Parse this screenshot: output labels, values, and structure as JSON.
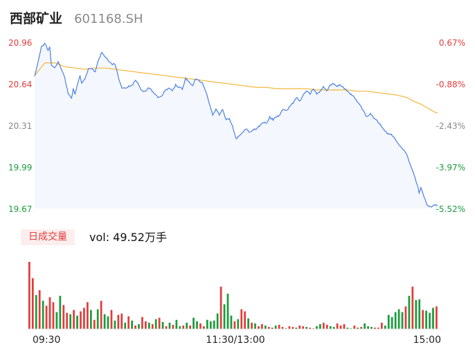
{
  "header": {
    "name": "西部矿业",
    "code": "601168.SH"
  },
  "volume": {
    "tab_label": "日成交量",
    "vol_text": "vol: 49.52万手"
  },
  "colors": {
    "price_line": "#4a7fe3",
    "avg_line": "#f5b63a",
    "up": "#e33b3b",
    "down": "#1a9b3c",
    "area_fill": "#f4f7fd",
    "neutral": "#888888"
  },
  "chart_data": [
    {
      "type": "line",
      "title": "",
      "x_ticks": [
        "09:30",
        "11:30/13:00",
        "15:00"
      ],
      "y_ticks_left": [
        "20.96",
        "20.64",
        "20.31",
        "19.99",
        "19.67"
      ],
      "y_ticks_right": [
        "0.67%",
        "-0.88%",
        "-2.43%",
        "-3.97%",
        "-5.52%"
      ],
      "ylim": [
        19.67,
        20.96
      ],
      "price_anchors": [
        [
          0,
          20.7
        ],
        [
          2,
          20.8
        ],
        [
          4,
          20.92
        ],
        [
          6,
          20.95
        ],
        [
          8,
          20.9
        ],
        [
          9,
          20.92
        ],
        [
          10,
          20.78
        ],
        [
          12,
          20.76
        ],
        [
          14,
          20.81
        ],
        [
          16,
          20.75
        ],
        [
          18,
          20.68
        ],
        [
          20,
          20.56
        ],
        [
          22,
          20.53
        ],
        [
          23,
          20.6
        ],
        [
          24,
          20.56
        ],
        [
          26,
          20.66
        ],
        [
          27,
          20.7
        ],
        [
          28,
          20.64
        ],
        [
          30,
          20.68
        ],
        [
          32,
          20.75
        ],
        [
          34,
          20.76
        ],
        [
          36,
          20.73
        ],
        [
          38,
          20.82
        ],
        [
          40,
          20.88
        ],
        [
          42,
          20.85
        ],
        [
          44,
          20.81
        ],
        [
          46,
          20.79
        ],
        [
          48,
          20.79
        ],
        [
          50,
          20.68
        ],
        [
          52,
          20.61
        ],
        [
          54,
          20.6
        ],
        [
          56,
          20.62
        ],
        [
          58,
          20.62
        ],
        [
          60,
          20.67
        ],
        [
          62,
          20.63
        ],
        [
          64,
          20.58
        ],
        [
          66,
          20.58
        ],
        [
          68,
          20.61
        ],
        [
          70,
          20.58
        ],
        [
          72,
          20.55
        ],
        [
          74,
          20.53
        ],
        [
          76,
          20.55
        ],
        [
          78,
          20.59
        ],
        [
          80,
          20.6
        ],
        [
          82,
          20.58
        ],
        [
          84,
          20.63
        ],
        [
          86,
          20.61
        ],
        [
          88,
          20.6
        ],
        [
          90,
          20.68
        ],
        [
          92,
          20.65
        ],
        [
          94,
          20.62
        ],
        [
          96,
          20.68
        ],
        [
          98,
          20.66
        ],
        [
          100,
          20.64
        ],
        [
          102,
          20.58
        ],
        [
          104,
          20.49
        ],
        [
          106,
          20.4
        ],
        [
          108,
          20.44
        ],
        [
          110,
          20.4
        ],
        [
          112,
          20.44
        ],
        [
          114,
          20.36
        ],
        [
          116,
          20.37
        ],
        [
          118,
          20.3
        ],
        [
          120,
          20.21
        ],
        [
          122,
          20.24
        ],
        [
          124,
          20.26
        ],
        [
          126,
          20.29
        ],
        [
          128,
          20.26
        ],
        [
          130,
          20.28
        ],
        [
          132,
          20.29
        ],
        [
          134,
          20.31
        ],
        [
          136,
          20.34
        ],
        [
          138,
          20.33
        ],
        [
          140,
          20.38
        ],
        [
          142,
          20.36
        ],
        [
          144,
          20.38
        ],
        [
          146,
          20.4
        ],
        [
          148,
          20.44
        ],
        [
          150,
          20.43
        ],
        [
          152,
          20.46
        ],
        [
          154,
          20.49
        ],
        [
          156,
          20.53
        ],
        [
          158,
          20.5
        ],
        [
          160,
          20.55
        ],
        [
          162,
          20.58
        ],
        [
          164,
          20.56
        ],
        [
          166,
          20.6
        ],
        [
          168,
          20.56
        ],
        [
          170,
          20.58
        ],
        [
          172,
          20.62
        ],
        [
          174,
          20.58
        ],
        [
          176,
          20.63
        ],
        [
          178,
          20.64
        ],
        [
          180,
          20.62
        ],
        [
          182,
          20.63
        ],
        [
          184,
          20.61
        ],
        [
          186,
          20.58
        ],
        [
          188,
          20.56
        ],
        [
          190,
          20.54
        ],
        [
          192,
          20.5
        ],
        [
          194,
          20.47
        ],
        [
          196,
          20.42
        ],
        [
          198,
          20.38
        ],
        [
          200,
          20.41
        ],
        [
          202,
          20.37
        ],
        [
          204,
          20.35
        ],
        [
          206,
          20.32
        ],
        [
          208,
          20.28
        ],
        [
          210,
          20.25
        ],
        [
          212,
          20.25
        ],
        [
          214,
          20.22
        ],
        [
          216,
          20.18
        ],
        [
          218,
          20.15
        ],
        [
          220,
          20.12
        ],
        [
          222,
          20.08
        ],
        [
          224,
          20.0
        ],
        [
          226,
          19.93
        ],
        [
          228,
          19.85
        ],
        [
          229,
          19.79
        ],
        [
          230,
          19.83
        ],
        [
          232,
          19.76
        ],
        [
          234,
          19.69
        ],
        [
          236,
          19.68
        ],
        [
          238,
          19.7
        ],
        [
          240,
          19.69
        ]
      ],
      "avg_anchors": [
        [
          0,
          20.7
        ],
        [
          6,
          20.8
        ],
        [
          12,
          20.8
        ],
        [
          18,
          20.77
        ],
        [
          24,
          20.76
        ],
        [
          30,
          20.75
        ],
        [
          36,
          20.76
        ],
        [
          42,
          20.76
        ],
        [
          48,
          20.75
        ],
        [
          54,
          20.74
        ],
        [
          60,
          20.73
        ],
        [
          66,
          20.72
        ],
        [
          72,
          20.71
        ],
        [
          78,
          20.7
        ],
        [
          84,
          20.69
        ],
        [
          90,
          20.68
        ],
        [
          96,
          20.67
        ],
        [
          102,
          20.66
        ],
        [
          108,
          20.65
        ],
        [
          114,
          20.64
        ],
        [
          120,
          20.63
        ],
        [
          126,
          20.62
        ],
        [
          132,
          20.61
        ],
        [
          138,
          20.61
        ],
        [
          144,
          20.6
        ],
        [
          150,
          20.6
        ],
        [
          156,
          20.6
        ],
        [
          162,
          20.6
        ],
        [
          168,
          20.59
        ],
        [
          174,
          20.59
        ],
        [
          180,
          20.59
        ],
        [
          186,
          20.59
        ],
        [
          192,
          20.58
        ],
        [
          198,
          20.58
        ],
        [
          204,
          20.57
        ],
        [
          210,
          20.56
        ],
        [
          216,
          20.55
        ],
        [
          222,
          20.53
        ],
        [
          226,
          20.5
        ],
        [
          230,
          20.48
        ],
        [
          234,
          20.45
        ],
        [
          238,
          20.42
        ],
        [
          240,
          20.41
        ]
      ]
    },
    {
      "type": "bar",
      "title": "",
      "unit": "万手",
      "series_name": "volume",
      "bars_count": 120,
      "bar_colors_hint": "red when price rising, green when falling",
      "values": [
        95,
        72,
        48,
        55,
        40,
        33,
        45,
        38,
        24,
        47,
        34,
        23,
        21,
        27,
        19,
        25,
        30,
        38,
        27,
        13,
        28,
        40,
        21,
        18,
        27,
        12,
        20,
        22,
        9,
        18,
        12,
        5,
        7,
        17,
        11,
        9,
        7,
        14,
        16,
        10,
        4,
        9,
        6,
        13,
        4,
        5,
        9,
        5,
        16,
        11,
        8,
        4,
        13,
        11,
        12,
        22,
        60,
        35,
        50,
        19,
        11,
        14,
        28,
        25,
        15,
        9,
        8,
        4,
        7,
        5,
        3,
        2,
        5,
        6,
        3,
        1,
        4,
        3,
        2,
        5,
        4,
        3,
        2,
        1,
        4,
        7,
        9,
        6,
        4,
        3,
        8,
        5,
        7,
        2,
        1,
        5,
        2,
        3,
        8,
        4,
        3,
        2,
        2,
        9,
        5,
        20,
        17,
        24,
        28,
        24,
        32,
        47,
        60,
        41,
        42,
        27,
        26,
        23,
        30,
        32
      ],
      "up_down": [
        1,
        1,
        0,
        1,
        0,
        1,
        1,
        1,
        0,
        0,
        1,
        1,
        0,
        1,
        0,
        1,
        1,
        1,
        0,
        1,
        0,
        1,
        0,
        0,
        1,
        0,
        1,
        1,
        0,
        1,
        0,
        1,
        0,
        1,
        1,
        0,
        1,
        0,
        1,
        0,
        1,
        0,
        1,
        0,
        0,
        1,
        0,
        1,
        0,
        0,
        1,
        1,
        0,
        0,
        0,
        0,
        1,
        0,
        0,
        0,
        1,
        0,
        1,
        1,
        0,
        1,
        0,
        1,
        1,
        0,
        1,
        1,
        0,
        1,
        1,
        0,
        1,
        1,
        0,
        1,
        1,
        0,
        1,
        1,
        0,
        0,
        1,
        1,
        0,
        0,
        1,
        1,
        1,
        0,
        0,
        1,
        0,
        1,
        0,
        0,
        0,
        1,
        1,
        1,
        0,
        0,
        0,
        0,
        0,
        0,
        1,
        0,
        1,
        0,
        0,
        1,
        0,
        0,
        0,
        1
      ]
    }
  ]
}
